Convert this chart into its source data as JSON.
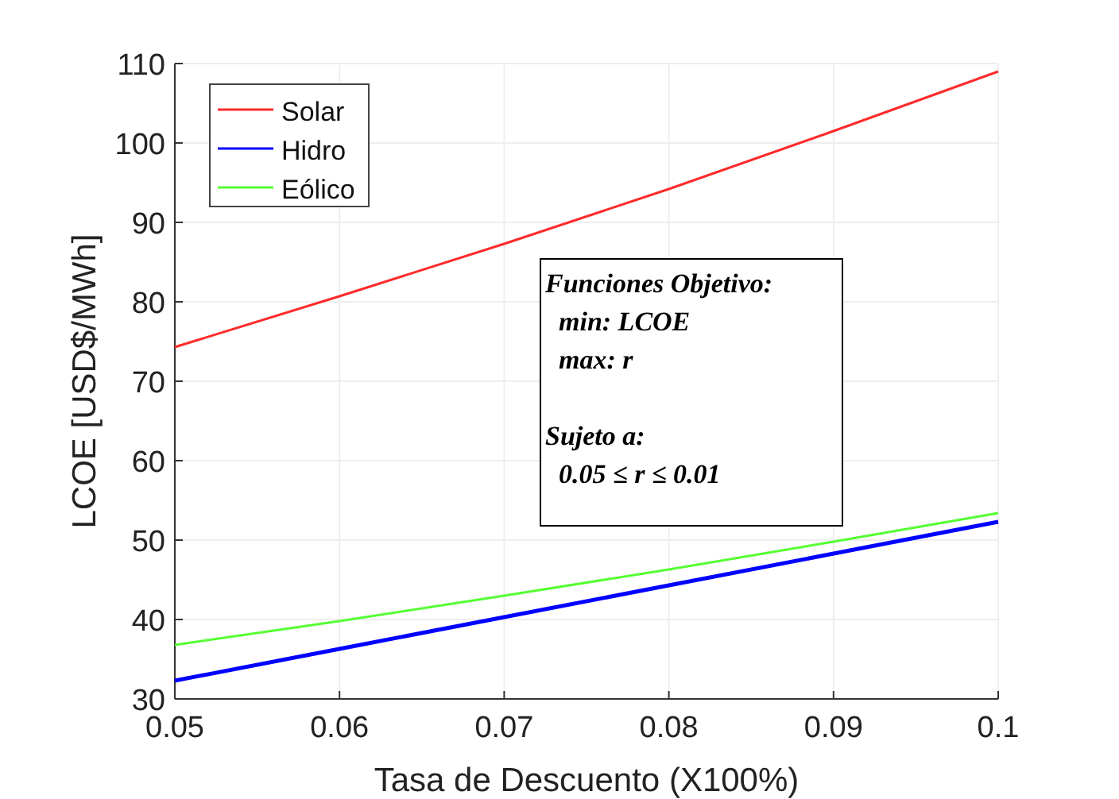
{
  "chart_data": {
    "type": "line",
    "xlabel": "Tasa de Descuento (X100%)",
    "ylabel": "LCOE [USD$/MWh]",
    "x": [
      0.05,
      0.06,
      0.07,
      0.08,
      0.09,
      0.1
    ],
    "series": [
      {
        "name": "Solar",
        "color": "#ff2a2a",
        "values": [
          74.3,
          80.7,
          87.3,
          94.2,
          101.5,
          109
        ]
      },
      {
        "name": "Hidro",
        "color": "#0000ff",
        "values": [
          32.3,
          36.3,
          40.3,
          44.3,
          48.3,
          52.3
        ]
      },
      {
        "name": "Eólico",
        "color": "#55ff33",
        "values": [
          36.8,
          39.8,
          43,
          46.3,
          49.8,
          53.4
        ]
      }
    ],
    "xlim": [
      0.05,
      0.1
    ],
    "xticks": [
      0.05,
      0.06,
      0.07,
      0.08,
      0.09,
      0.1
    ],
    "ylim": [
      30,
      110
    ],
    "yticks": [
      30,
      40,
      50,
      60,
      70,
      80,
      90,
      100,
      110
    ],
    "grid": true,
    "legend": "top left",
    "marker": "none",
    "line_style": "solid",
    "annotations": [
      "Funciones Objetivo:\n  min: LCOE\n  max: r\n\nSujeto a:\n  0.05 ≤ r ≤ 0.01"
    ]
  }
}
